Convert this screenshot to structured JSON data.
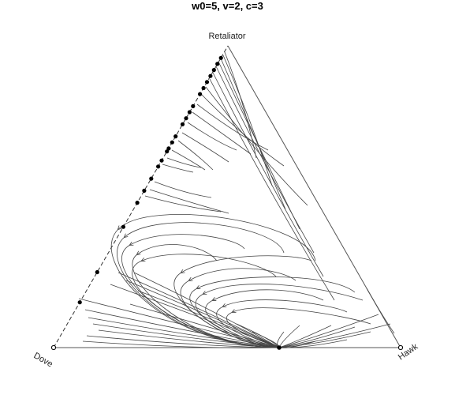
{
  "title": "w0=5, v=2, c=3",
  "vertices": {
    "top": "Retaliator",
    "left": "Dove",
    "right": "Hawk"
  },
  "colors": {
    "edge": "#555555",
    "dashed_edge": "#333333",
    "trajectory": "#444444",
    "stable_point": "#000000",
    "unstable_point": "#ffffff"
  },
  "attracting_point": {
    "hawk": 0.65,
    "dove": 0.35,
    "retaliator": 0.0
  },
  "rest_points_on_dove_retaliator_edge": [
    0.15,
    0.25,
    0.4,
    0.48,
    0.52,
    0.56,
    0.6,
    0.62,
    0.65,
    0.66,
    0.68,
    0.7,
    0.74,
    0.76,
    0.78,
    0.8,
    0.84,
    0.86,
    0.88,
    0.9,
    0.92,
    0.94,
    0.96
  ],
  "unstable_vertices": [
    "Dove",
    "Hawk"
  ]
}
